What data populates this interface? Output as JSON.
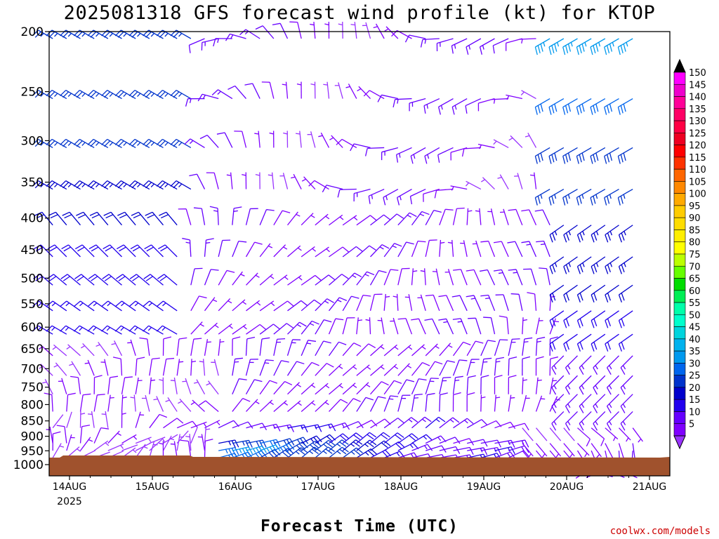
{
  "chart_data": {
    "type": "wind-barb time-height profile",
    "title": "2025081318 GFS forecast wind profile (kt) for KTOP",
    "xlabel": "Forecast Time (UTC)",
    "ylabel": "",
    "credit": "coolwx.com/models",
    "y_axis": {
      "scale": "log-pressure, inverted",
      "ticks": [
        200,
        250,
        300,
        350,
        400,
        450,
        500,
        550,
        600,
        650,
        700,
        750,
        800,
        850,
        900,
        950,
        1000
      ]
    },
    "x_axis": {
      "day_labels": [
        "14AUG",
        "15AUG",
        "16AUG",
        "17AUG",
        "18AUG",
        "19AUG",
        "20AUG",
        "21AUG"
      ],
      "year_label": "2025"
    },
    "legend": {
      "placement": "right colorbar",
      "units": "kt",
      "levels": [
        5,
        10,
        15,
        20,
        25,
        30,
        35,
        40,
        45,
        50,
        55,
        60,
        65,
        70,
        75,
        80,
        85,
        90,
        95,
        100,
        105,
        110,
        115,
        120,
        125,
        130,
        135,
        140,
        145,
        150
      ],
      "colors": [
        "#7f00ff",
        "#6600ff",
        "#2200ee",
        "#0000cc",
        "#0033cc",
        "#0066ee",
        "#0099ee",
        "#00b2ee",
        "#00d4dd",
        "#00ffcc",
        "#00ffaa",
        "#00ee55",
        "#00dd00",
        "#66ff00",
        "#bbff00",
        "#ffff00",
        "#ffee00",
        "#ffdd00",
        "#ffcc00",
        "#ffaa00",
        "#ff8800",
        "#ff6600",
        "#ff3300",
        "#ff0000",
        "#ee0022",
        "#ff0044",
        "#ff0066",
        "#ff0099",
        "#ee00cc",
        "#ff00ff"
      ],
      "under_color": "#9933ff",
      "over_color": "#000000"
    },
    "terrain_color": "#a0522d",
    "surface_pressure_hpa": 987,
    "time_steps": 44,
    "hours_per_step": 4,
    "first_step_hours_before_14AUG00Z": 6,
    "pressure_levels": [
      200,
      250,
      300,
      350,
      400,
      450,
      500,
      550,
      600,
      650,
      700,
      750,
      800,
      850,
      900,
      925,
      950,
      975
    ],
    "wind_barbs": [
      {
        "p": 200,
        "day": "14AUG",
        "dir_deg": 300,
        "speed_kt": 25
      },
      {
        "p": 200,
        "day": "15AUG",
        "dir_deg": 290,
        "speed_kt": 25
      },
      {
        "p": 200,
        "day": "16AUG",
        "dir_deg": 230,
        "speed_kt": 10
      },
      {
        "p": 200,
        "day": "17AUG",
        "dir_deg": 300,
        "speed_kt": 10
      },
      {
        "p": 200,
        "day": "18AUG",
        "dir_deg": 200,
        "speed_kt": 15
      },
      {
        "p": 200,
        "day": "19AUG",
        "dir_deg": 280,
        "speed_kt": 20
      },
      {
        "p": 200,
        "day": "20AUG",
        "dir_deg": 300,
        "speed_kt": 40
      },
      {
        "p": 200,
        "day": "21AUG",
        "dir_deg": 230,
        "speed_kt": 25
      },
      {
        "p": 250,
        "day": "14AUG",
        "dir_deg": 300,
        "speed_kt": 25
      },
      {
        "p": 250,
        "day": "16AUG",
        "dir_deg": 250,
        "speed_kt": 10
      },
      {
        "p": 250,
        "day": "18AUG",
        "dir_deg": 90,
        "speed_kt": 10
      },
      {
        "p": 250,
        "day": "20AUG",
        "dir_deg": 230,
        "speed_kt": 35
      },
      {
        "p": 300,
        "day": "14AUG",
        "dir_deg": 300,
        "speed_kt": 25
      },
      {
        "p": 300,
        "day": "17AUG",
        "dir_deg": 340,
        "speed_kt": 10
      },
      {
        "p": 300,
        "day": "20AUG",
        "dir_deg": 250,
        "speed_kt": 30
      },
      {
        "p": 400,
        "day": "14AUG",
        "dir_deg": 300,
        "speed_kt": 25
      },
      {
        "p": 400,
        "day": "17AUG",
        "dir_deg": 10,
        "speed_kt": 10
      },
      {
        "p": 400,
        "day": "20AUG",
        "dir_deg": 230,
        "speed_kt": 20
      },
      {
        "p": 500,
        "day": "14AUG",
        "dir_deg": 320,
        "speed_kt": 15
      },
      {
        "p": 500,
        "day": "17AUG",
        "dir_deg": 20,
        "speed_kt": 10
      },
      {
        "p": 500,
        "day": "20AUG",
        "dir_deg": 240,
        "speed_kt": 20
      },
      {
        "p": 700,
        "day": "14AUG",
        "dir_deg": 340,
        "speed_kt": 5
      },
      {
        "p": 700,
        "day": "17AUG",
        "dir_deg": 20,
        "speed_kt": 10
      },
      {
        "p": 700,
        "day": "20AUG",
        "dir_deg": 230,
        "speed_kt": 15
      },
      {
        "p": 850,
        "day": "14AUG",
        "dir_deg": 20,
        "speed_kt": 5
      },
      {
        "p": 850,
        "day": "16AUG",
        "dir_deg": 60,
        "speed_kt": 20
      },
      {
        "p": 850,
        "day": "18AUG",
        "dir_deg": 70,
        "speed_kt": 15
      },
      {
        "p": 850,
        "day": "20AUG",
        "dir_deg": 190,
        "speed_kt": 10
      },
      {
        "p": 950,
        "day": "16AUG",
        "dir_deg": 70,
        "speed_kt": 35
      },
      {
        "p": 950,
        "day": "18AUG",
        "dir_deg": 60,
        "speed_kt": 20
      },
      {
        "p": 950,
        "day": "21AUG",
        "dir_deg": 140,
        "speed_kt": 5
      }
    ]
  }
}
